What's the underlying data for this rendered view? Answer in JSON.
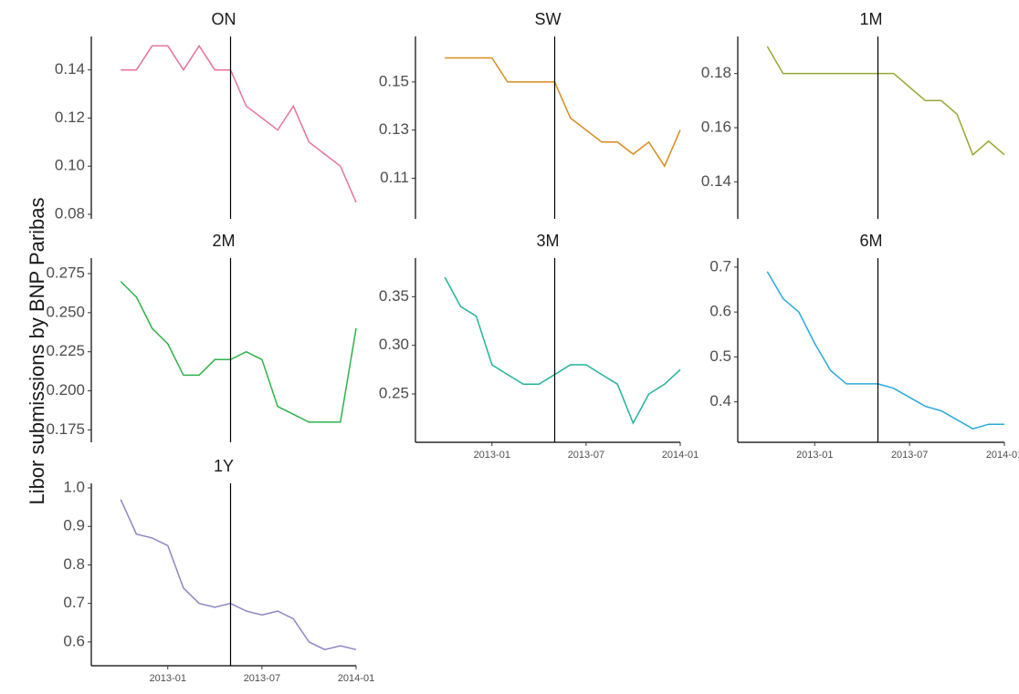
{
  "y_label": "Libor submissions by BNP Paribas",
  "chart_data": [
    {
      "type": "line",
      "title": "ON",
      "color": "#e7739b",
      "vline": "2013-05",
      "x": [
        "2012-10",
        "2012-11",
        "2012-12",
        "2013-01",
        "2013-02",
        "2013-03",
        "2013-04",
        "2013-05",
        "2013-06",
        "2013-07",
        "2013-08",
        "2013-09",
        "2013-10",
        "2013-11",
        "2013-12",
        "2014-01"
      ],
      "values": [
        0.14,
        0.14,
        0.15,
        0.15,
        0.14,
        0.15,
        0.14,
        0.14,
        0.125,
        0.12,
        0.115,
        0.125,
        0.11,
        0.105,
        0.1,
        0.085
      ],
      "xlim": [
        "2012-09",
        "2014-01"
      ],
      "xticks": [
        "2013-01",
        "2013-07",
        "2014-01"
      ],
      "ylim": [
        0.08,
        0.152
      ],
      "yticks": [
        0.08,
        {
          "value": 0.1,
          "label": "0.10"
        },
        0.12,
        0.14
      ]
    },
    {
      "type": "line",
      "title": "SW",
      "color": "#d98b1e",
      "vline": "2013-05",
      "x": [
        "2012-10",
        "2012-11",
        "2012-12",
        "2013-01",
        "2013-02",
        "2013-03",
        "2013-04",
        "2013-05",
        "2013-06",
        "2013-07",
        "2013-08",
        "2013-09",
        "2013-10",
        "2013-11",
        "2013-12",
        "2014-01"
      ],
      "values": [
        0.16,
        0.16,
        0.16,
        0.16,
        0.15,
        0.15,
        0.15,
        0.15,
        0.135,
        0.13,
        0.125,
        0.125,
        0.12,
        0.125,
        0.115,
        0.13
      ],
      "xlim": [
        "2012-09",
        "2014-01"
      ],
      "xticks": [
        "2013-01",
        "2013-07",
        "2014-01"
      ],
      "ylim": [
        0.095,
        0.167
      ],
      "yticks": [
        0.11,
        0.13,
        0.15
      ]
    },
    {
      "type": "line",
      "title": "1M",
      "color": "#9aa832",
      "vline": "2013-05",
      "x": [
        "2012-10",
        "2012-11",
        "2012-12",
        "2013-01",
        "2013-02",
        "2013-03",
        "2013-04",
        "2013-05",
        "2013-06",
        "2013-07",
        "2013-08",
        "2013-09",
        "2013-10",
        "2013-11",
        "2013-12",
        "2014-01"
      ],
      "values": [
        0.19,
        0.18,
        0.18,
        0.18,
        0.18,
        0.18,
        0.18,
        0.18,
        0.18,
        0.175,
        0.17,
        0.17,
        0.165,
        0.15,
        0.155,
        0.15
      ],
      "xlim": [
        "2012-09",
        "2014-01"
      ],
      "xticks": [
        "2013-01",
        "2013-07",
        "2014-01"
      ],
      "ylim": [
        0.128,
        0.192
      ],
      "yticks": [
        0.14,
        0.16,
        0.18
      ]
    },
    {
      "type": "line",
      "title": "2M",
      "color": "#2db34a",
      "vline": "2013-05",
      "x": [
        "2012-10",
        "2012-11",
        "2012-12",
        "2013-01",
        "2013-02",
        "2013-03",
        "2013-04",
        "2013-05",
        "2013-06",
        "2013-07",
        "2013-08",
        "2013-09",
        "2013-10",
        "2013-11",
        "2013-12",
        "2014-01"
      ],
      "values": [
        0.27,
        0.26,
        0.24,
        0.23,
        0.21,
        0.21,
        0.22,
        0.22,
        0.225,
        0.22,
        0.19,
        0.185,
        0.18,
        0.18,
        0.18,
        0.24
      ],
      "xlim": [
        "2012-09",
        "2014-01"
      ],
      "xticks": [
        "2013-01",
        "2013-07",
        "2014-01"
      ],
      "ylim": [
        0.17,
        0.282
      ],
      "yticks": [
        0.175,
        {
          "value": 0.2,
          "label": "0.200"
        },
        0.225,
        {
          "value": 0.25,
          "label": "0.250"
        },
        0.275
      ]
    },
    {
      "type": "line",
      "title": "3M",
      "color": "#21b39c",
      "vline": "2013-05",
      "x": [
        "2012-10",
        "2012-11",
        "2012-12",
        "2013-01",
        "2013-02",
        "2013-03",
        "2013-04",
        "2013-05",
        "2013-06",
        "2013-07",
        "2013-08",
        "2013-09",
        "2013-10",
        "2013-11",
        "2013-12",
        "2014-01"
      ],
      "values": [
        0.37,
        0.34,
        0.33,
        0.28,
        0.27,
        0.26,
        0.26,
        0.27,
        0.28,
        0.28,
        0.27,
        0.26,
        0.22,
        0.25,
        0.26,
        0.275
      ],
      "xlim": [
        "2012-09",
        "2014-01"
      ],
      "xticks": [
        "2013-01",
        "2013-07",
        "2014-01"
      ],
      "ylim": [
        0.205,
        0.385
      ],
      "yticks": [
        0.25,
        {
          "value": 0.3,
          "label": "0.30"
        },
        0.35
      ]
    },
    {
      "type": "line",
      "title": "6M",
      "color": "#29a9dc",
      "vline": "2013-05",
      "x": [
        "2012-10",
        "2012-11",
        "2012-12",
        "2013-01",
        "2013-02",
        "2013-03",
        "2013-04",
        "2013-05",
        "2013-06",
        "2013-07",
        "2013-08",
        "2013-09",
        "2013-10",
        "2013-11",
        "2013-12",
        "2014-01"
      ],
      "values": [
        0.69,
        0.63,
        0.6,
        0.53,
        0.47,
        0.44,
        0.44,
        0.44,
        0.43,
        0.41,
        0.39,
        0.38,
        0.36,
        0.34,
        0.35,
        0.35
      ],
      "xlim": [
        "2012-09",
        "2014-01"
      ],
      "xticks": [
        "2013-01",
        "2013-07",
        "2014-01"
      ],
      "ylim": [
        0.32,
        0.71
      ],
      "yticks": [
        0.4,
        0.5,
        0.6,
        0.7
      ]
    },
    {
      "type": "line",
      "title": "1Y",
      "color": "#8c87c4",
      "vline": "2013-05",
      "x": [
        "2012-10",
        "2012-11",
        "2012-12",
        "2013-01",
        "2013-02",
        "2013-03",
        "2013-04",
        "2013-05",
        "2013-06",
        "2013-07",
        "2013-08",
        "2013-09",
        "2013-10",
        "2013-11",
        "2013-12",
        "2014-01"
      ],
      "values": [
        0.97,
        0.88,
        0.87,
        0.85,
        0.74,
        0.7,
        0.69,
        0.7,
        0.68,
        0.67,
        0.68,
        0.66,
        0.6,
        0.58,
        0.59,
        0.58
      ],
      "xlim": [
        "2012-09",
        "2014-01"
      ],
      "xticks": [
        "2013-01",
        "2013-07",
        "2014-01"
      ],
      "ylim": [
        0.55,
        1.0
      ],
      "yticks": [
        0.6,
        0.7,
        0.8,
        0.9,
        {
          "value": 1.0,
          "label": "1.0"
        }
      ]
    }
  ]
}
